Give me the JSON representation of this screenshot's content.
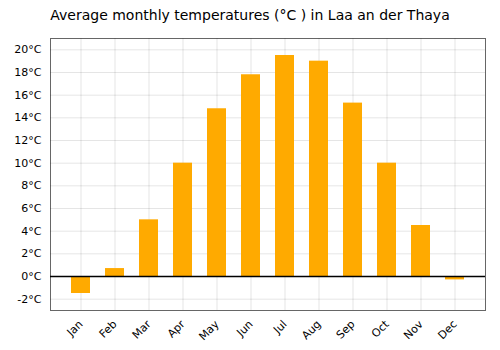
{
  "chart_data": {
    "type": "bar",
    "title": "Average monthly temperatures (°C ) in Laa an der Thaya",
    "categories": [
      "Jan",
      "Feb",
      "Mar",
      "Apr",
      "May",
      "Jun",
      "Jul",
      "Aug",
      "Sep",
      "Oct",
      "Nov",
      "Dec"
    ],
    "values": [
      -1.5,
      0.7,
      5.0,
      10.0,
      14.8,
      17.8,
      19.5,
      19.0,
      15.3,
      10.0,
      4.5,
      -0.3
    ],
    "color": "#FFAA00",
    "ylim": [
      -3,
      21
    ],
    "yticks": [
      {
        "value": -2,
        "label": "-2°C"
      },
      {
        "value": 0,
        "label": "0°C"
      },
      {
        "value": 2,
        "label": "2°C"
      },
      {
        "value": 4,
        "label": "4°C"
      },
      {
        "value": 6,
        "label": "6°C"
      },
      {
        "value": 8,
        "label": "8°C"
      },
      {
        "value": 10,
        "label": "10°C"
      },
      {
        "value": 12,
        "label": "12°C"
      },
      {
        "value": 14,
        "label": "14°C"
      },
      {
        "value": 16,
        "label": "16°C"
      },
      {
        "value": 18,
        "label": "18°C"
      },
      {
        "value": 20,
        "label": "20°C"
      }
    ],
    "grid": true
  }
}
